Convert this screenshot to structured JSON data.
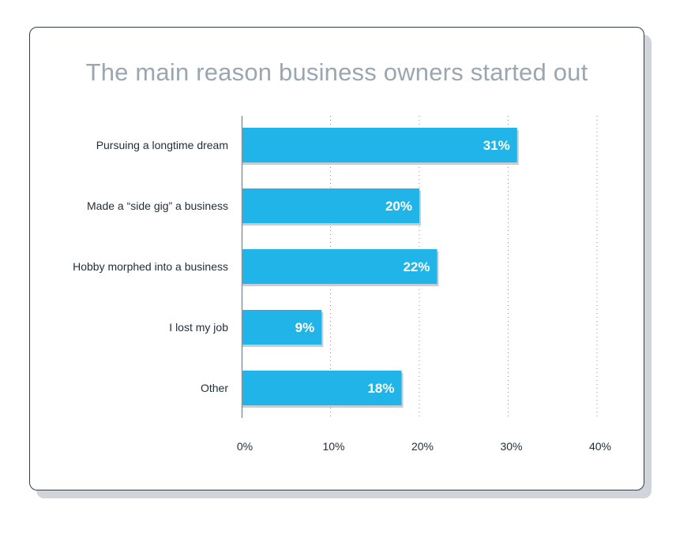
{
  "chart_data": {
    "type": "bar",
    "orientation": "horizontal",
    "title": "The main reason business owners started out",
    "categories": [
      "Pursuing a longtime dream",
      "Made a “side gig” a business",
      "Hobby morphed into a business",
      "I lost my job",
      "Other"
    ],
    "values": [
      31,
      20,
      22,
      9,
      18
    ],
    "value_labels": [
      "31%",
      "20%",
      "22%",
      "9%",
      "18%"
    ],
    "xlim": [
      0,
      40
    ],
    "x_ticks": [
      0,
      10,
      20,
      30,
      40
    ],
    "x_tick_labels": [
      "0%",
      "10%",
      "20%",
      "30%",
      "40%"
    ],
    "grid": "vertical-dotted",
    "colors": {
      "bar": "#20b4e8",
      "bar_shadow": "#c9ccd1",
      "title": "#9aa6b2",
      "text": "#1f2d3a"
    }
  }
}
